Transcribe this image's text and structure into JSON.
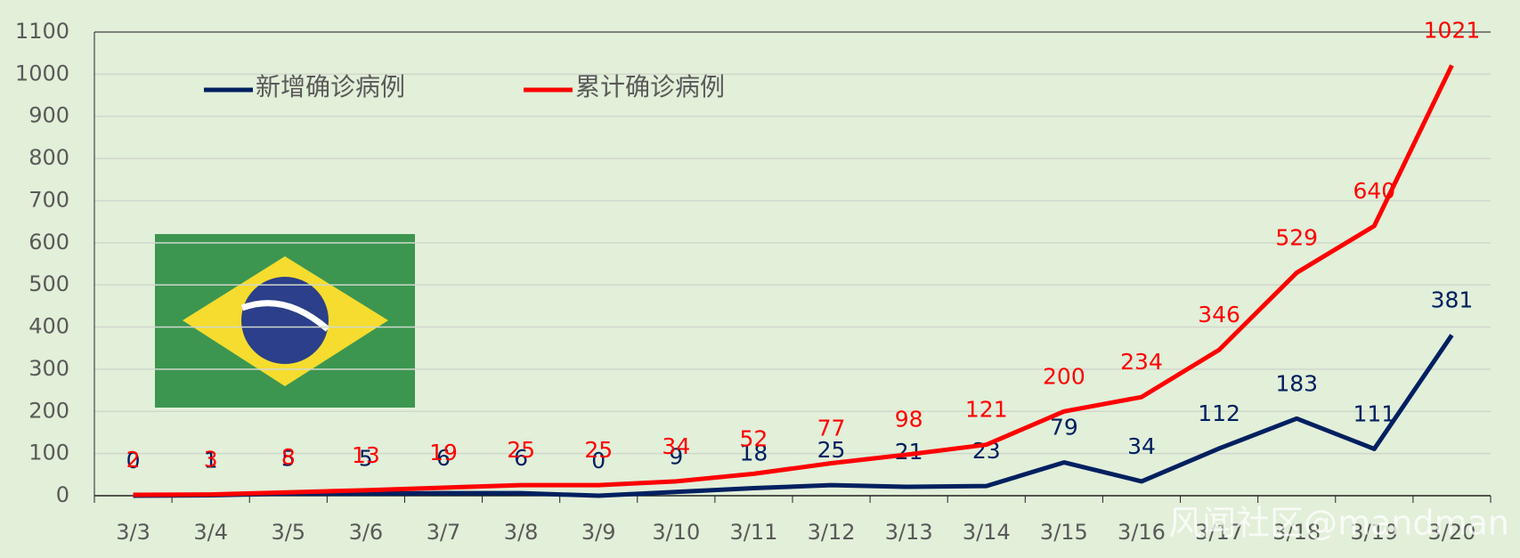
{
  "chart_data": {
    "type": "line",
    "categories": [
      "3/3",
      "3/4",
      "3/5",
      "3/6",
      "3/7",
      "3/8",
      "3/9",
      "3/10",
      "3/11",
      "3/12",
      "3/13",
      "3/14",
      "3/15",
      "3/16",
      "3/17",
      "3/18",
      "3/19",
      "3/20"
    ],
    "series": [
      {
        "name": "新增确诊病例",
        "color": "#002060",
        "values": [
          0,
          1,
          5,
          5,
          6,
          6,
          0,
          9,
          18,
          25,
          21,
          23,
          79,
          34,
          112,
          183,
          111,
          381
        ]
      },
      {
        "name": "累计确诊病例",
        "color": "#ff0000",
        "values": [
          2,
          3,
          8,
          13,
          19,
          25,
          25,
          34,
          52,
          77,
          98,
          121,
          200,
          234,
          346,
          529,
          640,
          1021
        ]
      }
    ],
    "ylim": [
      0,
      1100
    ],
    "yticks": [
      0,
      100,
      200,
      300,
      400,
      500,
      600,
      700,
      800,
      900,
      1000,
      1100
    ],
    "grid": true,
    "legend": "top-left",
    "watermark": "风闻社区@mandman"
  }
}
